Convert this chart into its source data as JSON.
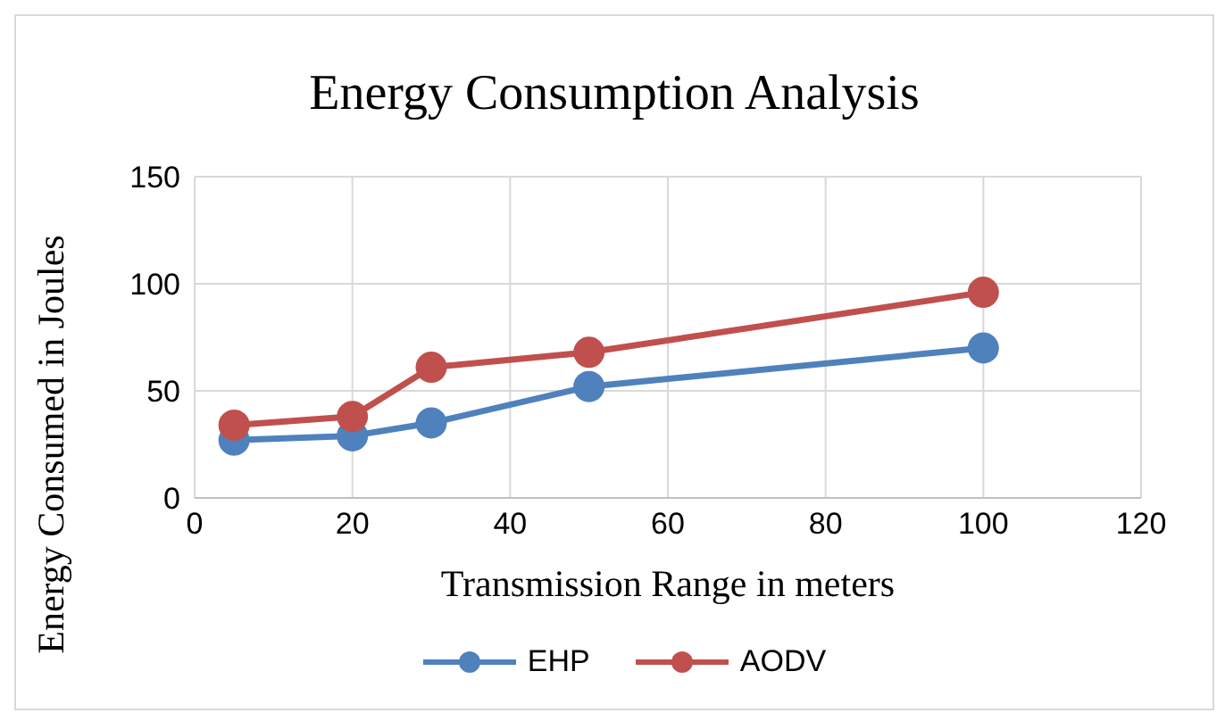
{
  "chart_data": {
    "type": "line",
    "title": "Energy Consumption Analysis",
    "xlabel": "Transmission Range in meters",
    "ylabel": "Energy Consumed in Joules",
    "x": [
      5,
      20,
      30,
      50,
      100
    ],
    "series": [
      {
        "name": "EHP",
        "color": "#4f81bd",
        "values": [
          27,
          29,
          35,
          52,
          70
        ]
      },
      {
        "name": "AODV",
        "color": "#c0504d",
        "values": [
          34,
          38,
          61,
          68,
          96
        ]
      }
    ],
    "xlim": [
      0,
      120
    ],
    "xticks": [
      0,
      20,
      40,
      60,
      80,
      100,
      120
    ],
    "ylim": [
      0,
      150
    ],
    "yticks": [
      0,
      50,
      100,
      150
    ],
    "grid": true,
    "legend": "bottom",
    "marker": "circle",
    "line_style": "solid"
  }
}
